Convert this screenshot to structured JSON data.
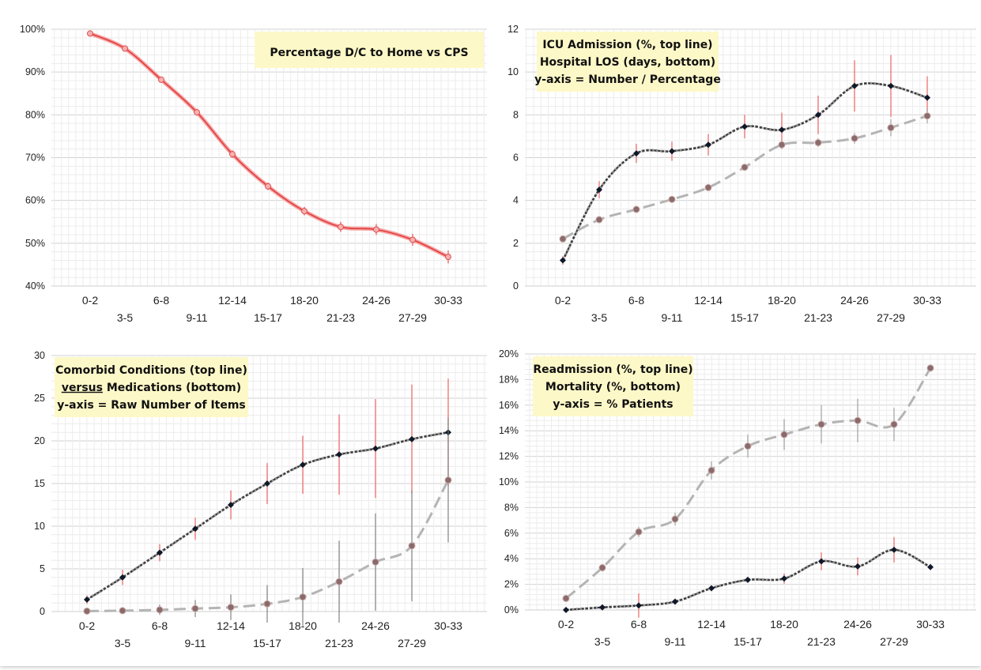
{
  "chart_data": [
    {
      "type": "line",
      "annotation_lines": [
        "Percentage D/C to Home vs CPS"
      ],
      "categories": [
        "0-2",
        "3-5",
        "6-8",
        "9-11",
        "12-14",
        "15-17",
        "18-20",
        "21-23",
        "24-26",
        "27-29",
        "30-33"
      ],
      "ylim": [
        0.4,
        1.0
      ],
      "y_ticks": [
        "40%",
        "50%",
        "60%",
        "70%",
        "80%",
        "90%",
        "100%"
      ],
      "grid": true,
      "series": [
        {
          "values": [
            0.99,
            0.955,
            0.882,
            0.806,
            0.708,
            0.633,
            0.575,
            0.538,
            0.532,
            0.508,
            0.468
          ],
          "error": [
            0.003,
            0.005,
            0.007,
            0.008,
            0.009,
            0.009,
            0.01,
            0.012,
            0.013,
            0.014,
            0.015
          ],
          "color": "#e84a4a",
          "style": "solid-red",
          "marker": "circle"
        }
      ]
    },
    {
      "type": "line",
      "annotation_lines": [
        "ICU Admission (%, top line)",
        "Hospital LOS (days, bottom)",
        "y-axis = Number / Percentage"
      ],
      "categories": [
        "0-2",
        "3-5",
        "6-8",
        "9-11",
        "12-14",
        "15-17",
        "18-20",
        "21-23",
        "24-26",
        "27-29",
        "30-33"
      ],
      "ylim": [
        0,
        12
      ],
      "y_ticks": [
        "0",
        "2",
        "4",
        "6",
        "8",
        "10",
        "12"
      ],
      "grid": true,
      "series": [
        {
          "values": [
            1.2,
            4.5,
            6.2,
            6.3,
            6.6,
            7.45,
            7.3,
            8.0,
            9.35,
            9.35,
            8.8
          ],
          "error": [
            0.2,
            0.4,
            0.45,
            0.45,
            0.5,
            0.55,
            0.8,
            0.9,
            1.2,
            1.45,
            1.0
          ],
          "error_color": "#ee5555",
          "color": "#333333",
          "style": "dotted-dark",
          "marker": "diamond"
        },
        {
          "values": [
            2.2,
            3.1,
            3.58,
            4.05,
            4.6,
            5.55,
            6.6,
            6.7,
            6.9,
            7.4,
            7.95
          ],
          "error": [
            0.1,
            0.1,
            0.1,
            0.12,
            0.12,
            0.15,
            0.2,
            0.2,
            0.25,
            0.4,
            0.35
          ],
          "error_color": "#999999",
          "color": "#a8a8a8",
          "style": "dashed-gray",
          "marker": "circle"
        }
      ]
    },
    {
      "type": "line",
      "annotation_lines": [
        "Comorbid Conditions (top line)",
        "versus Medications (bottom)",
        "y-axis = Raw Number of Items"
      ],
      "annotation_underline": "versus",
      "categories": [
        "0-2",
        "3-5",
        "6-8",
        "9-11",
        "12-14",
        "15-17",
        "18-20",
        "21-23",
        "24-26",
        "27-29",
        "30-33"
      ],
      "ylim": [
        0,
        30
      ],
      "y_ticks": [
        "0",
        "5",
        "10",
        "15",
        "20",
        "25",
        "30"
      ],
      "grid": true,
      "series": [
        {
          "values": [
            1.4,
            4.0,
            6.9,
            9.7,
            12.5,
            15.0,
            17.2,
            18.4,
            19.1,
            20.2,
            21.0
          ],
          "error": [
            0.5,
            0.9,
            1.0,
            1.3,
            1.7,
            2.4,
            3.4,
            4.7,
            5.8,
            6.4,
            6.3
          ],
          "error_color": "#ee5555",
          "color": "#333333",
          "style": "dotted-dark",
          "marker": "diamond"
        },
        {
          "values": [
            0.05,
            0.1,
            0.2,
            0.35,
            0.5,
            0.9,
            1.7,
            3.5,
            5.8,
            7.7,
            15.4
          ],
          "error": [
            0.1,
            0.2,
            0.6,
            1.0,
            1.5,
            2.2,
            3.4,
            4.8,
            5.7,
            6.5,
            7.3
          ],
          "error_color": "#777777",
          "color": "#a8a8a8",
          "style": "dashed-gray",
          "marker": "circle"
        }
      ]
    },
    {
      "type": "line",
      "annotation_lines": [
        "Readmission (%, top line)",
        "Mortality (%, bottom)",
        "y-axis = % Patients"
      ],
      "categories": [
        "0-2",
        "3-5",
        "6-8",
        "9-11",
        "12-14",
        "15-17",
        "18-20",
        "21-23",
        "24-26",
        "27-29",
        "30-33"
      ],
      "ylim": [
        0,
        0.2
      ],
      "y_ticks": [
        "0%",
        "2%",
        "4%",
        "6%",
        "8%",
        "10%",
        "12%",
        "14%",
        "16%",
        "18%",
        "20%"
      ],
      "grid": true,
      "series": [
        {
          "values": [
            0.009,
            0.033,
            0.061,
            0.071,
            0.109,
            0.128,
            0.137,
            0.145,
            0.148,
            0.145,
            0.189
          ],
          "error": [
            0.002,
            0.003,
            0.004,
            0.005,
            0.007,
            0.009,
            0.012,
            0.015,
            0.017,
            0.013,
            0.001
          ],
          "error_color": "#999999",
          "color": "#a8a8a8",
          "style": "dashed-gray",
          "marker": "circle"
        },
        {
          "values": [
            0.0,
            0.002,
            0.0035,
            0.0065,
            0.017,
            0.0235,
            0.0245,
            0.038,
            0.034,
            0.047,
            0.0335
          ],
          "error": [
            0.0005,
            0.001,
            0.0095,
            0.001,
            0.002,
            0.002,
            0.004,
            0.007,
            0.007,
            0.01,
            0.001
          ],
          "error_color": "#ee5555",
          "color": "#333333",
          "style": "dotted-dark",
          "marker": "diamond"
        }
      ]
    }
  ]
}
